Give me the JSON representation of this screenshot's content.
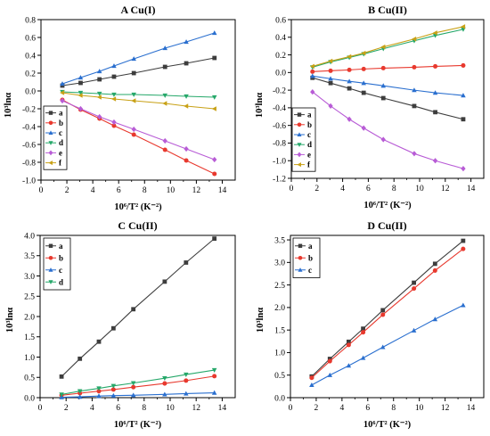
{
  "colors": {
    "a": "#3d3d3d",
    "b": "#e8392e",
    "c": "#2a6fcf",
    "d": "#26a86a",
    "e": "#b85cd6",
    "f": "#c8a116"
  },
  "chart_data": [
    {
      "type": "line",
      "title": "A Cu(I)",
      "xlabel": "10⁶/T² (K⁻²)",
      "ylabel": "10³lnα",
      "xlim": [
        0,
        15
      ],
      "ylim": [
        -1.0,
        0.8
      ],
      "xticks": [
        "0",
        "2",
        "4",
        "6",
        "8",
        "10",
        "12",
        "14"
      ],
      "yticks": [
        "-1.0",
        "-0.8",
        "-0.6",
        "-0.4",
        "-0.2",
        "0.0",
        "0.2",
        "0.4",
        "0.6",
        "0.8"
      ],
      "legend": "bottom-left",
      "x": [
        1.65,
        3.06,
        4.52,
        5.64,
        7.17,
        9.58,
        11.22,
        13.4
      ],
      "series": [
        {
          "name": "a",
          "color": "a",
          "marker": "square",
          "values": [
            0.06,
            0.09,
            0.13,
            0.16,
            0.2,
            0.27,
            0.31,
            0.37
          ]
        },
        {
          "name": "b",
          "color": "b",
          "marker": "circle",
          "values": [
            -0.1,
            -0.21,
            -0.31,
            -0.39,
            -0.49,
            -0.66,
            -0.78,
            -0.93
          ]
        },
        {
          "name": "c",
          "color": "c",
          "marker": "triangle-up",
          "values": [
            0.08,
            0.15,
            0.22,
            0.28,
            0.36,
            0.48,
            0.55,
            0.65
          ]
        },
        {
          "name": "d",
          "color": "d",
          "marker": "triangle-down",
          "values": [
            -0.01,
            -0.02,
            -0.03,
            -0.04,
            -0.04,
            -0.05,
            -0.06,
            -0.07
          ]
        },
        {
          "name": "e",
          "color": "e",
          "marker": "diamond",
          "values": [
            -0.11,
            -0.2,
            -0.29,
            -0.35,
            -0.43,
            -0.56,
            -0.65,
            -0.77
          ]
        },
        {
          "name": "f",
          "color": "f",
          "marker": "triangle-left",
          "values": [
            -0.02,
            -0.05,
            -0.07,
            -0.09,
            -0.11,
            -0.14,
            -0.17,
            -0.2
          ]
        }
      ]
    },
    {
      "type": "line",
      "title": "B Cu(II)",
      "xlabel": "10⁶/T² (K⁻²)",
      "ylabel": "10³lnα",
      "xlim": [
        0,
        15
      ],
      "ylim": [
        -1.2,
        0.6
      ],
      "xticks": [
        "0",
        "2",
        "4",
        "6",
        "8",
        "10",
        "12",
        "14"
      ],
      "yticks": [
        "-1.2",
        "-1.0",
        "-0.8",
        "-0.6",
        "-0.4",
        "-0.2",
        "0.0",
        "0.2",
        "0.4",
        "0.6"
      ],
      "legend": "bottom-left",
      "x": [
        1.65,
        3.06,
        4.52,
        5.64,
        7.17,
        9.58,
        11.22,
        13.4
      ],
      "series": [
        {
          "name": "a",
          "color": "a",
          "marker": "square",
          "values": [
            -0.06,
            -0.12,
            -0.18,
            -0.23,
            -0.29,
            -0.38,
            -0.45,
            -0.53
          ]
        },
        {
          "name": "b",
          "color": "b",
          "marker": "circle",
          "values": [
            0.01,
            0.02,
            0.03,
            0.04,
            0.05,
            0.06,
            0.07,
            0.08
          ]
        },
        {
          "name": "c",
          "color": "c",
          "marker": "triangle-up",
          "values": [
            -0.04,
            -0.07,
            -0.1,
            -0.12,
            -0.15,
            -0.2,
            -0.23,
            -0.26
          ]
        },
        {
          "name": "d",
          "color": "d",
          "marker": "triangle-down",
          "values": [
            0.06,
            0.12,
            0.17,
            0.21,
            0.27,
            0.36,
            0.42,
            0.49
          ]
        },
        {
          "name": "e",
          "color": "e",
          "marker": "diamond",
          "values": [
            -0.22,
            -0.38,
            -0.53,
            -0.63,
            -0.76,
            -0.92,
            -1.0,
            -1.09
          ]
        },
        {
          "name": "f",
          "color": "f",
          "marker": "triangle-left",
          "values": [
            0.07,
            0.13,
            0.18,
            0.22,
            0.29,
            0.38,
            0.45,
            0.52
          ]
        }
      ]
    },
    {
      "type": "line",
      "title": "C Cu(II)",
      "xlabel": "10⁶/T² (K⁻²)",
      "ylabel": "10³lnα",
      "xlim": [
        0,
        15
      ],
      "ylim": [
        0.0,
        4.0
      ],
      "xticks": [
        "0",
        "2",
        "4",
        "6",
        "8",
        "10",
        "12",
        "14"
      ],
      "yticks": [
        "0.0",
        "0.5",
        "1.0",
        "1.5",
        "2.0",
        "2.5",
        "3.0",
        "3.5",
        "4.0"
      ],
      "legend": "top-left",
      "x": [
        1.65,
        3.06,
        4.52,
        5.64,
        7.17,
        9.58,
        11.22,
        13.4
      ],
      "series": [
        {
          "name": "a",
          "color": "a",
          "marker": "square",
          "values": [
            0.52,
            0.96,
            1.38,
            1.71,
            2.18,
            2.86,
            3.33,
            3.92
          ]
        },
        {
          "name": "b",
          "color": "b",
          "marker": "circle",
          "values": [
            0.06,
            0.11,
            0.16,
            0.2,
            0.26,
            0.35,
            0.42,
            0.53
          ]
        },
        {
          "name": "c",
          "color": "c",
          "marker": "triangle-up",
          "values": [
            0.01,
            0.02,
            0.04,
            0.05,
            0.06,
            0.08,
            0.1,
            0.12
          ]
        },
        {
          "name": "d",
          "color": "d",
          "marker": "triangle-down",
          "values": [
            0.08,
            0.16,
            0.23,
            0.29,
            0.36,
            0.48,
            0.57,
            0.68
          ]
        }
      ]
    },
    {
      "type": "line",
      "title": "D Cu(II)",
      "xlabel": "10⁶/T² (K⁻²)",
      "ylabel": "10³lnα",
      "xlim": [
        0,
        15
      ],
      "ylim": [
        0.0,
        3.6
      ],
      "xticks": [
        "0",
        "2",
        "4",
        "6",
        "8",
        "10",
        "12",
        "14"
      ],
      "yticks": [
        "0.0",
        "0.5",
        "1.0",
        "1.5",
        "2.0",
        "2.5",
        "3.0",
        "3.5"
      ],
      "legend": "top-left",
      "x": [
        1.65,
        3.06,
        4.52,
        5.64,
        7.17,
        9.58,
        11.22,
        13.4
      ],
      "series": [
        {
          "name": "a",
          "color": "a",
          "marker": "square",
          "values": [
            0.47,
            0.86,
            1.24,
            1.53,
            1.94,
            2.55,
            2.97,
            3.48
          ]
        },
        {
          "name": "b",
          "color": "b",
          "marker": "circle",
          "values": [
            0.44,
            0.81,
            1.17,
            1.45,
            1.84,
            2.42,
            2.82,
            3.3
          ]
        },
        {
          "name": "c",
          "color": "c",
          "marker": "triangle-up",
          "values": [
            0.28,
            0.5,
            0.71,
            0.88,
            1.12,
            1.49,
            1.74,
            2.05
          ]
        }
      ]
    }
  ]
}
